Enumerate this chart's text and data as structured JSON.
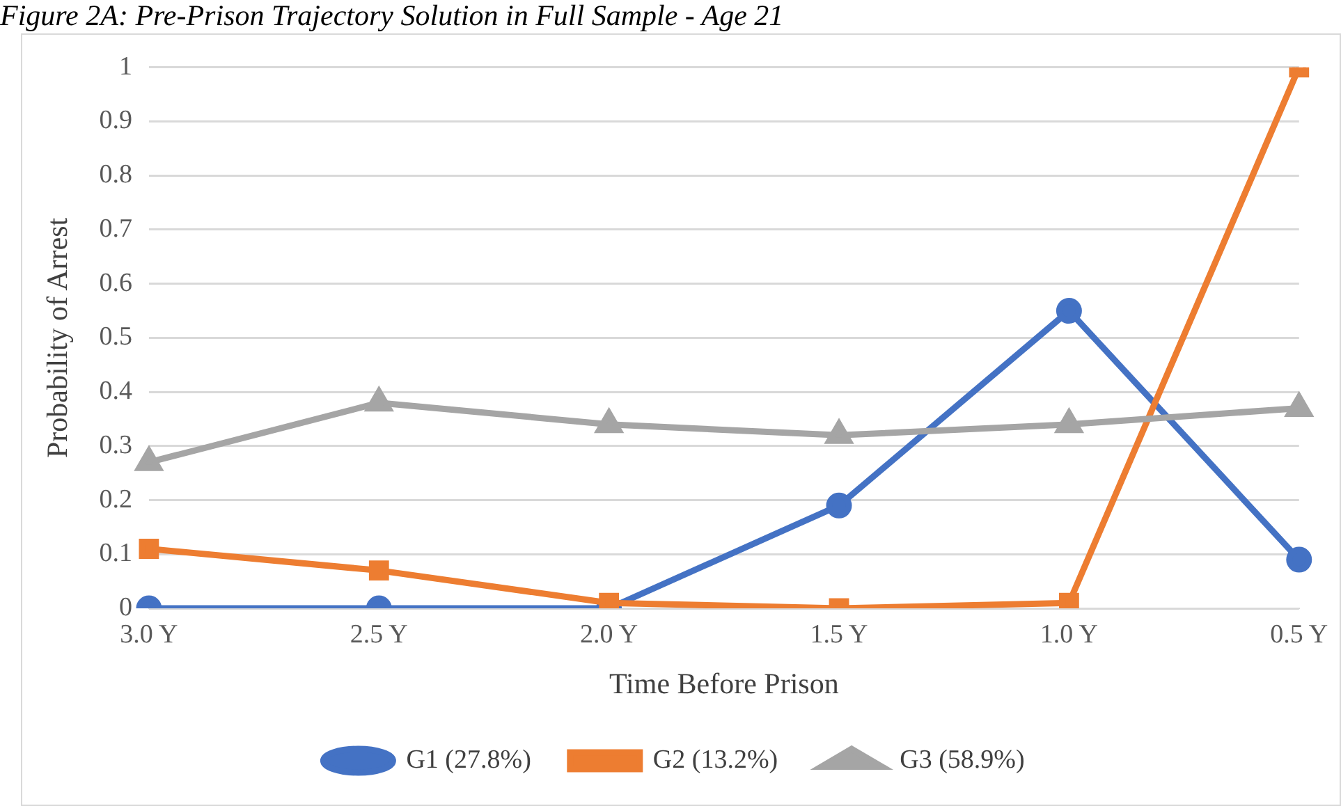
{
  "chart_data": {
    "type": "line",
    "title": "Figure 2A: Pre-Prison Trajectory Solution in Full Sample - Age 21",
    "xlabel": "Time Before Prison",
    "ylabel": "Probability of Arrest",
    "categories": [
      "3.0 Y",
      "2.5 Y",
      "2.0 Y",
      "1.5 Y",
      "1.0 Y",
      "0.5 Y"
    ],
    "series": [
      {
        "name": "G1 (27.8%)",
        "color": "#4472c4",
        "marker": "circle",
        "values": [
          0,
          0,
          0,
          0.19,
          0.55,
          0.09
        ]
      },
      {
        "name": "G2 (13.2%)",
        "color": "#ed7d31",
        "marker": "square",
        "values": [
          0.11,
          0.07,
          0.01,
          0,
          0.01,
          1
        ]
      },
      {
        "name": "G3 (58.9%)",
        "color": "#a5a5a5",
        "marker": "triangle",
        "values": [
          0.27,
          0.38,
          0.34,
          0.32,
          0.34,
          0.37
        ]
      }
    ],
    "ylim": [
      0,
      1
    ],
    "yticks": [
      0,
      0.1,
      0.2,
      0.3,
      0.4,
      0.5,
      0.6,
      0.7,
      0.8,
      0.9,
      1
    ],
    "grid": "y",
    "legend": "bottom"
  }
}
